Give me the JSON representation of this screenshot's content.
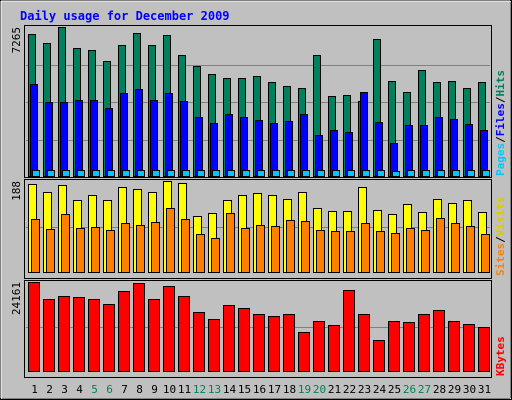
{
  "chart_data": {
    "type": "bar",
    "title": "Daily usage for December 2009",
    "categories": [
      "1",
      "2",
      "3",
      "4",
      "5",
      "6",
      "7",
      "8",
      "9",
      "10",
      "11",
      "12",
      "13",
      "14",
      "15",
      "16",
      "17",
      "18",
      "19",
      "20",
      "21",
      "22",
      "23",
      "24",
      "25",
      "26",
      "27",
      "28",
      "29",
      "30",
      "31"
    ],
    "weekend_days": [
      "5",
      "6",
      "12",
      "13",
      "19",
      "20",
      "26",
      "27"
    ],
    "panels": [
      {
        "id": "hits-files-pages",
        "max_label": "7265",
        "ylim": [
          0,
          7265
        ],
        "legend": [
          "Pages",
          "/",
          "Files",
          "/",
          "Hits"
        ],
        "series": [
          {
            "name": "Hits",
            "color": "#00805c",
            "values": [
              6940,
              6500,
              7265,
              6270,
              6150,
              5600,
              6370,
              6970,
              6400,
              6900,
              5900,
              5400,
              5000,
              4800,
              4800,
              4900,
              4600,
              4400,
              4300,
              5900,
              3900,
              3950,
              3700,
              6700,
              4650,
              4100,
              5200,
              4600,
              4650,
              4300,
              4600
            ]
          },
          {
            "name": "Files",
            "color": "#0000ff",
            "values": [
              4500,
              3650,
              3650,
              3750,
              3750,
              3350,
              4050,
              4250,
              3750,
              4050,
              3700,
              2900,
              2600,
              3050,
              2900,
              2750,
              2600,
              2700,
              3050,
              2050,
              2300,
              2200,
              4100,
              2650,
              1650,
              2500,
              2500,
              2900,
              2800,
              2550,
              2300
            ]
          },
          {
            "name": "Pages",
            "color": "#00c8ff",
            "values": [
              350,
              340,
              340,
              350,
              350,
              340,
              345,
              350,
              340,
              350,
              340,
              345,
              340,
              350,
              340,
              345,
              345,
              340,
              350,
              340,
              335,
              340,
              350,
              335,
              300,
              340,
              345,
              345,
              345,
              340,
              340
            ]
          }
        ]
      },
      {
        "id": "visits-sites",
        "max_label": "188",
        "ylim": [
          0,
          188
        ],
        "legend": [
          "Sites",
          "/",
          "Visits"
        ],
        "series": [
          {
            "name": "Visits",
            "color": "#ffff00",
            "values": [
              182,
              165,
              180,
              150,
              160,
              150,
              175,
              172,
              166,
              188,
              183,
              116,
              122,
              150,
              160,
              164,
              160,
              152,
              166,
              132,
              126,
              126,
              176,
              128,
              120,
              142,
              124,
              151,
              144,
              150,
              124
            ]
          },
          {
            "name": "Sites",
            "color": "#ff8000",
            "values": [
              110,
              90,
              121,
              92,
              94,
              88,
              102,
              98,
              104,
              132,
              110,
              80,
              72,
              122,
              92,
              98,
              96,
              108,
              106,
              88,
              86,
              86,
              102,
              86,
              82,
              92,
              88,
              112,
              102,
              96,
              80
            ]
          }
        ]
      },
      {
        "id": "kbytes",
        "max_label": "24161",
        "ylim": [
          0,
          24161
        ],
        "legend": [
          "KBytes"
        ],
        "series": [
          {
            "name": "KBytes",
            "color": "#ff0000",
            "values": [
              24161,
              19700,
              20500,
              20000,
              19600,
              18300,
              21700,
              24000,
              19700,
              23200,
              20300,
              16000,
              14100,
              18000,
              17100,
              15700,
              14900,
              15600,
              10800,
              13600,
              12600,
              22100,
              15500,
              8600,
              13600,
              13300,
              15500,
              16700,
              13600,
              12800,
              12000
            ]
          }
        ]
      }
    ]
  }
}
